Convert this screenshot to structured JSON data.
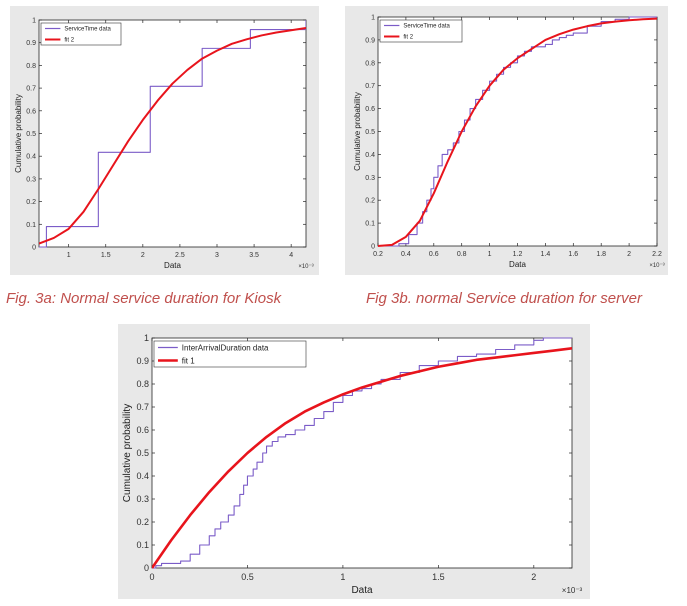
{
  "captions": {
    "a": "Fig. 3a: Normal service duration for Kiosk",
    "b": "Fig 3b. normal Service duration for server"
  },
  "colors": {
    "data": "#7b5cc8",
    "fit": "#e8141c",
    "panel": "#e8e8e8"
  },
  "chart_data": [
    {
      "id": "a",
      "type": "line",
      "xlabel": "Data",
      "ylabel": "Cumulative probability",
      "xlim": [
        0.6,
        4.2
      ],
      "ylim": [
        0,
        1
      ],
      "xticks": [
        1,
        1.5,
        2,
        2.5,
        3,
        3.5,
        4
      ],
      "xticklabels": [
        "1",
        "1.5",
        "2",
        "2.5",
        "3",
        "3.5",
        "4"
      ],
      "yticks": [
        0,
        0.1,
        0.2,
        0.3,
        0.4,
        0.5,
        0.6,
        0.7,
        0.8,
        0.9,
        1
      ],
      "yticklabels": [
        "0",
        "0.1",
        "0.2",
        "0.3",
        "0.4",
        "0.5",
        "0.6",
        "0.7",
        "0.8",
        "0.9",
        "1"
      ],
      "x_multiplier": "×10⁻³",
      "legend": "top-left",
      "series": [
        {
          "name": "ServiceTime data",
          "style": "step",
          "x": [
            0.6,
            0.7,
            1.4,
            2.1,
            2.8,
            3.45,
            4.2
          ],
          "y": [
            0,
            0.09,
            0.417,
            0.708,
            0.875,
            0.958,
            1
          ]
        },
        {
          "name": "fit 2",
          "style": "smooth",
          "x": [
            0.6,
            0.8,
            1.0,
            1.2,
            1.4,
            1.6,
            1.8,
            2.0,
            2.2,
            2.4,
            2.6,
            2.8,
            3.0,
            3.2,
            3.4,
            3.6,
            3.8,
            4.0,
            4.2
          ],
          "y": [
            0.015,
            0.04,
            0.08,
            0.155,
            0.255,
            0.36,
            0.465,
            0.56,
            0.645,
            0.72,
            0.78,
            0.83,
            0.865,
            0.895,
            0.915,
            0.932,
            0.945,
            0.955,
            0.965
          ]
        }
      ]
    },
    {
      "id": "b",
      "type": "line",
      "xlabel": "Data",
      "ylabel": "Cumulative probability",
      "xlim": [
        0.2,
        2.2
      ],
      "ylim": [
        0,
        1
      ],
      "xticks": [
        0.2,
        0.4,
        0.6,
        0.8,
        1,
        1.2,
        1.4,
        1.6,
        1.8,
        2,
        2.2
      ],
      "xticklabels": [
        "0.2",
        "0.4",
        "0.6",
        "0.8",
        "1",
        "1.2",
        "1.4",
        "1.6",
        "1.8",
        "2",
        "2.2"
      ],
      "yticks": [
        0,
        0.1,
        0.2,
        0.3,
        0.4,
        0.5,
        0.6,
        0.7,
        0.8,
        0.9,
        1
      ],
      "yticklabels": [
        "0",
        "0.1",
        "0.2",
        "0.3",
        "0.4",
        "0.5",
        "0.6",
        "0.7",
        "0.8",
        "0.9",
        "1"
      ],
      "x_multiplier": "×10⁻³",
      "legend": "top-left",
      "series": [
        {
          "name": "ServiceTime data",
          "style": "step",
          "x": [
            0.2,
            0.35,
            0.42,
            0.48,
            0.52,
            0.55,
            0.58,
            0.6,
            0.63,
            0.66,
            0.7,
            0.74,
            0.78,
            0.82,
            0.86,
            0.9,
            0.95,
            1.0,
            1.05,
            1.1,
            1.15,
            1.2,
            1.25,
            1.3,
            1.35,
            1.4,
            1.45,
            1.5,
            1.55,
            1.6,
            1.7,
            1.8,
            1.9,
            2.0,
            2.2
          ],
          "y": [
            0,
            0.01,
            0.05,
            0.1,
            0.15,
            0.2,
            0.25,
            0.3,
            0.35,
            0.4,
            0.42,
            0.45,
            0.5,
            0.55,
            0.6,
            0.64,
            0.68,
            0.72,
            0.75,
            0.78,
            0.8,
            0.83,
            0.85,
            0.87,
            0.87,
            0.88,
            0.9,
            0.91,
            0.92,
            0.93,
            0.96,
            0.98,
            0.99,
            1,
            1
          ]
        },
        {
          "name": "fit 2",
          "style": "smooth",
          "x": [
            0.2,
            0.3,
            0.4,
            0.5,
            0.6,
            0.7,
            0.8,
            0.9,
            1.0,
            1.1,
            1.2,
            1.3,
            1.4,
            1.5,
            1.6,
            1.7,
            1.8,
            1.9,
            2.0,
            2.1,
            2.2
          ],
          "y": [
            0,
            0.005,
            0.04,
            0.11,
            0.23,
            0.37,
            0.5,
            0.61,
            0.7,
            0.77,
            0.82,
            0.86,
            0.9,
            0.925,
            0.945,
            0.96,
            0.972,
            0.98,
            0.986,
            0.99,
            0.993
          ]
        }
      ]
    },
    {
      "id": "c",
      "type": "line",
      "xlabel": "Data",
      "ylabel": "Cumulative probability",
      "xlim": [
        0,
        2.2
      ],
      "ylim": [
        0,
        1
      ],
      "xticks": [
        0,
        0.5,
        1,
        1.5,
        2
      ],
      "xticklabels": [
        "0",
        "0.5",
        "1",
        "1.5",
        "2"
      ],
      "yticks": [
        0,
        0.1,
        0.2,
        0.3,
        0.4,
        0.5,
        0.6,
        0.7,
        0.8,
        0.9,
        1
      ],
      "yticklabels": [
        "0",
        "0.1",
        "0.2",
        "0.3",
        "0.4",
        "0.5",
        "0.6",
        "0.7",
        "0.8",
        "0.9",
        "1"
      ],
      "x_multiplier": "×10⁻³",
      "legend": "top-left",
      "series": [
        {
          "name": "InterArrivalDuration data",
          "style": "step",
          "x": [
            0,
            0.02,
            0.05,
            0.15,
            0.2,
            0.25,
            0.3,
            0.33,
            0.36,
            0.4,
            0.43,
            0.46,
            0.48,
            0.5,
            0.53,
            0.55,
            0.58,
            0.6,
            0.63,
            0.66,
            0.7,
            0.75,
            0.8,
            0.85,
            0.9,
            0.95,
            1.0,
            1.05,
            1.1,
            1.15,
            1.2,
            1.3,
            1.4,
            1.5,
            1.6,
            1.7,
            1.8,
            1.9,
            2.0,
            2.05,
            2.2
          ],
          "y": [
            0,
            0.01,
            0.02,
            0.03,
            0.06,
            0.1,
            0.14,
            0.17,
            0.2,
            0.23,
            0.27,
            0.32,
            0.36,
            0.4,
            0.43,
            0.46,
            0.5,
            0.53,
            0.55,
            0.57,
            0.58,
            0.6,
            0.62,
            0.65,
            0.68,
            0.72,
            0.75,
            0.77,
            0.78,
            0.8,
            0.82,
            0.85,
            0.88,
            0.9,
            0.92,
            0.93,
            0.95,
            0.97,
            0.99,
            1.0,
            1.0
          ]
        },
        {
          "name": "fit 1",
          "style": "smooth",
          "x": [
            0,
            0.1,
            0.2,
            0.3,
            0.4,
            0.5,
            0.6,
            0.7,
            0.8,
            0.9,
            1.0,
            1.1,
            1.2,
            1.3,
            1.4,
            1.5,
            1.6,
            1.7,
            1.8,
            1.9,
            2.0,
            2.1,
            2.2
          ],
          "y": [
            0,
            0.12,
            0.23,
            0.33,
            0.42,
            0.5,
            0.57,
            0.63,
            0.68,
            0.72,
            0.755,
            0.785,
            0.81,
            0.835,
            0.855,
            0.875,
            0.89,
            0.905,
            0.915,
            0.925,
            0.935,
            0.945,
            0.955
          ]
        }
      ]
    }
  ]
}
